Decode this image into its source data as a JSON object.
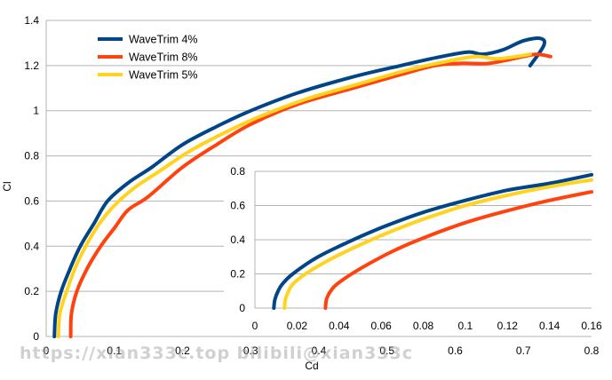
{
  "chart_data": [
    {
      "type": "line",
      "xlabel": "Cd",
      "ylabel": "Cl",
      "xlim": [
        0,
        0.8
      ],
      "ylim": [
        0,
        1.4
      ],
      "xticks": [
        0,
        0.1,
        0.2,
        0.3,
        0.4,
        0.5,
        0.6,
        0.7,
        0.8
      ],
      "yticks": [
        0,
        0.2,
        0.4,
        0.6,
        0.8,
        1,
        1.2,
        1.4
      ],
      "xtick_labels": [
        "0",
        "0.1",
        "0.2",
        "0.3",
        "0.4",
        "0.5",
        "0.6",
        "0.7",
        "0.8"
      ],
      "ytick_labels": [
        "0",
        "0.2",
        "0.4",
        "0.6",
        "0.8",
        "1",
        "1.2",
        "1.4"
      ],
      "grid": "horizontal",
      "legend_position": "top-left",
      "series": [
        {
          "name": "WaveTrim 4%",
          "color": "#004586",
          "points": [
            [
              0.012,
              0
            ],
            [
              0.014,
              0.1
            ],
            [
              0.022,
              0.2
            ],
            [
              0.035,
              0.3
            ],
            [
              0.05,
              0.4
            ],
            [
              0.07,
              0.5
            ],
            [
              0.09,
              0.6
            ],
            [
              0.12,
              0.68
            ],
            [
              0.155,
              0.75
            ],
            [
              0.2,
              0.85
            ],
            [
              0.25,
              0.93
            ],
            [
              0.3,
              1.0
            ],
            [
              0.37,
              1.08
            ],
            [
              0.45,
              1.15
            ],
            [
              0.52,
              1.2
            ],
            [
              0.58,
              1.24
            ],
            [
              0.62,
              1.26
            ],
            [
              0.64,
              1.25
            ],
            [
              0.67,
              1.27
            ],
            [
              0.7,
              1.31
            ],
            [
              0.725,
              1.32
            ],
            [
              0.73,
              1.29
            ],
            [
              0.71,
              1.2
            ]
          ]
        },
        {
          "name": "WaveTrim 8%",
          "color": "#ff420e",
          "points": [
            [
              0.036,
              0
            ],
            [
              0.037,
              0.1
            ],
            [
              0.045,
              0.2
            ],
            [
              0.06,
              0.3
            ],
            [
              0.08,
              0.4
            ],
            [
              0.1,
              0.48
            ],
            [
              0.12,
              0.56
            ],
            [
              0.15,
              0.62
            ],
            [
              0.2,
              0.75
            ],
            [
              0.25,
              0.85
            ],
            [
              0.3,
              0.94
            ],
            [
              0.37,
              1.03
            ],
            [
              0.45,
              1.1
            ],
            [
              0.52,
              1.16
            ],
            [
              0.57,
              1.2
            ],
            [
              0.61,
              1.21
            ],
            [
              0.65,
              1.21
            ],
            [
              0.7,
              1.24
            ],
            [
              0.72,
              1.25
            ],
            [
              0.74,
              1.24
            ]
          ]
        },
        {
          "name": "WaveTrim 5%",
          "color": "#ffd320",
          "points": [
            [
              0.018,
              0
            ],
            [
              0.02,
              0.1
            ],
            [
              0.03,
              0.2
            ],
            [
              0.042,
              0.3
            ],
            [
              0.058,
              0.4
            ],
            [
              0.078,
              0.5
            ],
            [
              0.1,
              0.58
            ],
            [
              0.13,
              0.66
            ],
            [
              0.165,
              0.73
            ],
            [
              0.21,
              0.82
            ],
            [
              0.26,
              0.9
            ],
            [
              0.31,
              0.97
            ],
            [
              0.38,
              1.05
            ],
            [
              0.46,
              1.12
            ],
            [
              0.53,
              1.18
            ],
            [
              0.59,
              1.22
            ],
            [
              0.63,
              1.24
            ],
            [
              0.66,
              1.23
            ],
            [
              0.69,
              1.24
            ],
            [
              0.71,
              1.25
            ]
          ]
        }
      ]
    },
    {
      "type": "line",
      "xlim": [
        0,
        0.16
      ],
      "ylim": [
        0,
        0.8
      ],
      "xticks": [
        0,
        0.02,
        0.04,
        0.06,
        0.08,
        0.1,
        0.12,
        0.14,
        0.16
      ],
      "yticks": [
        0,
        0.2,
        0.4,
        0.6,
        0.8
      ],
      "xtick_labels": [
        "0",
        "0.02",
        "0.04",
        "0.06",
        "0.08",
        "0.1",
        "0.12",
        "0.14",
        "0.16"
      ],
      "ytick_labels": [
        "0",
        "0.2",
        "0.4",
        "0.6",
        "0.8"
      ],
      "grid": "horizontal",
      "series": [
        {
          "name": "WaveTrim 4%",
          "color": "#004586",
          "points": [
            [
              0.009,
              0
            ],
            [
              0.0095,
              0.05
            ],
            [
              0.011,
              0.1
            ],
            [
              0.013,
              0.14
            ],
            [
              0.018,
              0.2
            ],
            [
              0.03,
              0.3
            ],
            [
              0.045,
              0.39
            ],
            [
              0.06,
              0.47
            ],
            [
              0.08,
              0.56
            ],
            [
              0.1,
              0.63
            ],
            [
              0.12,
              0.69
            ],
            [
              0.14,
              0.73
            ],
            [
              0.16,
              0.78
            ]
          ]
        },
        {
          "name": "WaveTrim 5%",
          "color": "#ffd320",
          "points": [
            [
              0.014,
              0
            ],
            [
              0.0145,
              0.05
            ],
            [
              0.016,
              0.1
            ],
            [
              0.018,
              0.14
            ],
            [
              0.024,
              0.2
            ],
            [
              0.035,
              0.28
            ],
            [
              0.05,
              0.37
            ],
            [
              0.065,
              0.45
            ],
            [
              0.08,
              0.52
            ],
            [
              0.1,
              0.6
            ],
            [
              0.12,
              0.66
            ],
            [
              0.14,
              0.71
            ],
            [
              0.16,
              0.75
            ]
          ]
        },
        {
          "name": "WaveTrim 8%",
          "color": "#ff420e",
          "points": [
            [
              0.0335,
              0
            ],
            [
              0.034,
              0.05
            ],
            [
              0.036,
              0.1
            ],
            [
              0.04,
              0.15
            ],
            [
              0.05,
              0.23
            ],
            [
              0.065,
              0.33
            ],
            [
              0.08,
              0.41
            ],
            [
              0.1,
              0.5
            ],
            [
              0.12,
              0.57
            ],
            [
              0.14,
              0.63
            ],
            [
              0.16,
              0.68
            ]
          ]
        }
      ]
    }
  ],
  "watermark": "https://xian333c.top  bilibili@xian333c"
}
